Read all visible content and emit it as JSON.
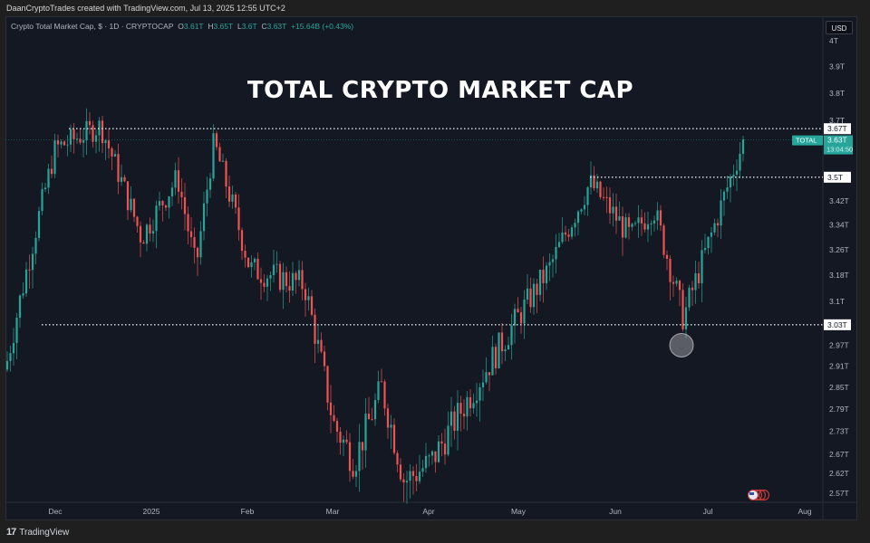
{
  "attribution": "DaanCryptoTrades created with TradingView.com, Jul 13, 2025 12:55 UTC+2",
  "legend": {
    "symbol_text": "Crypto Total Market Cap, $ · 1D · CRYPTOCAP",
    "o_label": "O",
    "o_value": "3.61T",
    "h_label": "H",
    "h_value": "3.65T",
    "l_label": "L",
    "l_value": "3.6T",
    "c_label": "C",
    "c_value": "3.63T",
    "change": "+15.64B (+0.43%)"
  },
  "currency_button": "USD",
  "annotation_title": "TOTAL CRYPTO MARKET CAP",
  "footer": {
    "logo_mark": "17",
    "logo_text": "TradingView"
  },
  "colors": {
    "up": "#26a69a",
    "down": "#ef5350",
    "background": "#141823",
    "frame": "#1f1f1f",
    "axis_text": "#b2b5be"
  },
  "price_badge": {
    "symbol": "TOTAL",
    "price": "3.63T",
    "countdown": "13:04:50"
  },
  "level_labels": [
    "3.67T",
    "3.5T",
    "3.03T"
  ],
  "chart_data": {
    "type": "candlestick",
    "title": "TOTAL CRYPTO MARKET CAP",
    "symbol": "CRYPTOCAP:TOTAL",
    "interval": "1D",
    "x_ticks": [
      "Dec",
      "2025",
      "Feb",
      "Mar",
      "Apr",
      "May",
      "Jun",
      "Jul",
      "Aug"
    ],
    "y_ticks": [
      "4T",
      "3.9T",
      "3.8T",
      "3.7T",
      "3.42T",
      "3.34T",
      "3.26T",
      "3.18T",
      "3.1T",
      "2.97T",
      "2.91T",
      "2.85T",
      "2.79T",
      "2.73T",
      "2.67T",
      "2.62T",
      "2.57T"
    ],
    "ylim": [
      2.55,
      4.02
    ],
    "horizontal_levels": [
      {
        "value": 3.67,
        "label": "3.67T",
        "style": "dotted",
        "from": "Dec"
      },
      {
        "value": 3.5,
        "label": "3.5T",
        "style": "dotted",
        "from": "late May"
      },
      {
        "value": 3.03,
        "label": "3.03T",
        "style": "dotted",
        "from": "late Nov"
      }
    ],
    "last_price": {
      "value": 3.63,
      "label": "TOTAL",
      "countdown": "13:04:50"
    },
    "ohlc_last": {
      "open": 3.61,
      "high": 3.65,
      "low": 3.6,
      "close": 3.63,
      "change": "+15.64B",
      "change_pct": "+0.43%"
    },
    "highlight_circle": {
      "near": "late Jun",
      "value": 2.97
    },
    "approx_monthly_path": [
      {
        "date": "mid Nov",
        "price": 2.9
      },
      {
        "date": "early Dec",
        "price": 3.6
      },
      {
        "date": "mid Dec",
        "price": 3.68
      },
      {
        "date": "late Dec",
        "price": 3.3
      },
      {
        "date": "early Jan",
        "price": 3.5
      },
      {
        "date": "mid Jan",
        "price": 3.2
      },
      {
        "date": "late Jan",
        "price": 3.62
      },
      {
        "date": "early Feb",
        "price": 3.2
      },
      {
        "date": "mid Feb",
        "price": 3.15
      },
      {
        "date": "early Mar",
        "price": 2.75
      },
      {
        "date": "mid Mar",
        "price": 2.65
      },
      {
        "date": "late Mar",
        "price": 2.85
      },
      {
        "date": "early Apr",
        "price": 2.6
      },
      {
        "date": "mid Apr",
        "price": 2.65
      },
      {
        "date": "late Apr",
        "price": 2.9
      },
      {
        "date": "early May",
        "price": 3.2
      },
      {
        "date": "late May",
        "price": 3.48
      },
      {
        "date": "early Jun",
        "price": 3.3
      },
      {
        "date": "mid Jun",
        "price": 3.4
      },
      {
        "date": "late Jun",
        "price": 3.05
      },
      {
        "date": "early Jul",
        "price": 3.3
      },
      {
        "date": "mid Jul",
        "price": 3.63
      }
    ]
  }
}
